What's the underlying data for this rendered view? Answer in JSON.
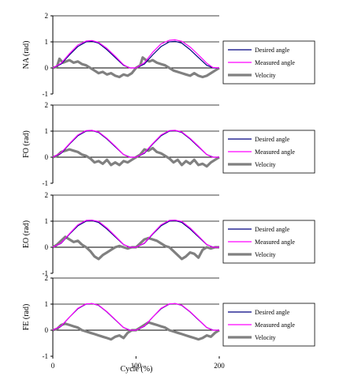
{
  "figure": {
    "xlabel": "Cycle (%)",
    "xticks": [
      "0",
      "100",
      "200"
    ]
  },
  "chart_data": [
    {
      "type": "line",
      "ylabel": "NA (rad)",
      "xlim": [
        0,
        200
      ],
      "ylim": [
        -1,
        2
      ],
      "yticks": [
        "2",
        "1",
        "0",
        "-1"
      ],
      "grid": true,
      "legend_position": "right",
      "series": [
        {
          "name": "Desired angle",
          "color": "#000080",
          "x": [
            0,
            10,
            20,
            30,
            40,
            47,
            55,
            65,
            75,
            85,
            93,
            100,
            110,
            120,
            130,
            140,
            147,
            155,
            165,
            175,
            185,
            193,
            200
          ],
          "y": [
            0,
            0.15,
            0.5,
            0.82,
            1.0,
            1.02,
            0.95,
            0.7,
            0.4,
            0.1,
            0.0,
            0.0,
            0.15,
            0.5,
            0.82,
            1.0,
            1.02,
            0.95,
            0.7,
            0.4,
            0.1,
            0.0,
            0.0
          ]
        },
        {
          "name": "Measured angle",
          "color": "#ff00ff",
          "x": [
            0,
            10,
            20,
            30,
            40,
            47,
            55,
            65,
            75,
            85,
            92,
            100,
            110,
            120,
            130,
            140,
            147,
            155,
            165,
            175,
            185,
            192,
            200
          ],
          "y": [
            0,
            0.18,
            0.55,
            0.88,
            1.03,
            1.05,
            0.98,
            0.75,
            0.45,
            0.12,
            0.0,
            0.0,
            0.2,
            0.6,
            0.92,
            1.06,
            1.08,
            1.02,
            0.8,
            0.5,
            0.18,
            0.02,
            0.0
          ]
        },
        {
          "name": "Velocity",
          "color": "#808080",
          "x": [
            0,
            5,
            8,
            12,
            16,
            20,
            25,
            30,
            35,
            40,
            45,
            50,
            55,
            60,
            65,
            70,
            75,
            80,
            85,
            90,
            95,
            100,
            105,
            108,
            112,
            116,
            120,
            125,
            130,
            135,
            140,
            145,
            150,
            155,
            160,
            165,
            170,
            175,
            180,
            185,
            190,
            195,
            200
          ],
          "y": [
            0,
            0.05,
            0.35,
            0.2,
            0.25,
            0.3,
            0.2,
            0.25,
            0.15,
            0.1,
            0.0,
            -0.1,
            -0.2,
            -0.15,
            -0.25,
            -0.2,
            -0.3,
            -0.35,
            -0.25,
            -0.3,
            -0.2,
            0.0,
            0.1,
            0.4,
            0.3,
            0.25,
            0.3,
            0.2,
            0.15,
            0.1,
            0.0,
            -0.1,
            -0.15,
            -0.2,
            -0.25,
            -0.3,
            -0.2,
            -0.3,
            -0.35,
            -0.3,
            -0.2,
            -0.1,
            0.0
          ]
        }
      ]
    },
    {
      "type": "line",
      "ylabel": "FO (rad)",
      "xlim": [
        0,
        200
      ],
      "ylim": [
        -1,
        2
      ],
      "yticks": [
        "2",
        "1",
        "0",
        "-1"
      ],
      "grid": true,
      "legend_position": "right",
      "series": [
        {
          "name": "Desired angle",
          "color": "#000080",
          "x": [
            0,
            10,
            20,
            30,
            40,
            47,
            55,
            65,
            75,
            85,
            93,
            100,
            110,
            120,
            130,
            140,
            147,
            155,
            165,
            175,
            185,
            193,
            200
          ],
          "y": [
            0,
            0.15,
            0.5,
            0.82,
            1.0,
            1.02,
            0.95,
            0.7,
            0.4,
            0.1,
            0.0,
            0.0,
            0.15,
            0.5,
            0.82,
            1.0,
            1.02,
            0.95,
            0.7,
            0.4,
            0.1,
            0.0,
            0.0
          ]
        },
        {
          "name": "Measured angle",
          "color": "#ff00ff",
          "x": [
            0,
            10,
            20,
            30,
            40,
            47,
            55,
            65,
            75,
            85,
            92,
            100,
            110,
            120,
            130,
            140,
            147,
            155,
            165,
            175,
            185,
            192,
            200
          ],
          "y": [
            0,
            0.17,
            0.52,
            0.85,
            1.02,
            1.03,
            0.97,
            0.72,
            0.42,
            0.1,
            0.0,
            0.0,
            0.17,
            0.52,
            0.85,
            1.02,
            1.03,
            0.97,
            0.72,
            0.42,
            0.1,
            0.0,
            0.0
          ]
        },
        {
          "name": "Velocity",
          "color": "#808080",
          "x": [
            0,
            5,
            10,
            15,
            20,
            25,
            30,
            35,
            40,
            45,
            50,
            55,
            60,
            65,
            70,
            75,
            80,
            85,
            90,
            95,
            100,
            105,
            110,
            115,
            120,
            125,
            130,
            135,
            140,
            145,
            150,
            155,
            160,
            165,
            170,
            175,
            180,
            185,
            190,
            195,
            200
          ],
          "y": [
            0,
            0.05,
            0.2,
            0.25,
            0.3,
            0.25,
            0.2,
            0.1,
            0.05,
            -0.05,
            -0.2,
            -0.15,
            -0.25,
            -0.1,
            -0.3,
            -0.2,
            -0.3,
            -0.15,
            -0.2,
            -0.1,
            0.0,
            0.1,
            0.3,
            0.25,
            0.35,
            0.2,
            0.15,
            0.05,
            -0.05,
            -0.2,
            -0.1,
            -0.3,
            -0.15,
            -0.25,
            -0.1,
            -0.3,
            -0.25,
            -0.35,
            -0.2,
            -0.1,
            0.0
          ]
        }
      ]
    },
    {
      "type": "line",
      "ylabel": "EO (rad)",
      "xlim": [
        0,
        200
      ],
      "ylim": [
        -1,
        2
      ],
      "yticks": [
        "2",
        "1",
        "0",
        "-1"
      ],
      "grid": true,
      "legend_position": "right",
      "series": [
        {
          "name": "Desired angle",
          "color": "#000080",
          "x": [
            0,
            10,
            20,
            30,
            40,
            47,
            55,
            65,
            75,
            85,
            93,
            100,
            110,
            120,
            130,
            140,
            147,
            155,
            165,
            175,
            185,
            193,
            200
          ],
          "y": [
            0,
            0.15,
            0.5,
            0.82,
            1.0,
            1.02,
            0.95,
            0.7,
            0.4,
            0.1,
            0.0,
            0.0,
            0.15,
            0.5,
            0.82,
            1.0,
            1.02,
            0.95,
            0.7,
            0.4,
            0.1,
            0.0,
            0.0
          ]
        },
        {
          "name": "Measured angle",
          "color": "#ff00ff",
          "x": [
            0,
            10,
            20,
            30,
            40,
            47,
            55,
            65,
            75,
            85,
            92,
            100,
            110,
            120,
            130,
            140,
            147,
            155,
            165,
            175,
            185,
            192,
            200
          ],
          "y": [
            0,
            0.16,
            0.52,
            0.86,
            1.03,
            1.04,
            0.99,
            0.74,
            0.43,
            0.11,
            0.0,
            0.0,
            0.16,
            0.52,
            0.86,
            1.03,
            1.04,
            0.99,
            0.74,
            0.43,
            0.11,
            0.0,
            0.0
          ]
        },
        {
          "name": "Velocity",
          "color": "#808080",
          "x": [
            0,
            5,
            10,
            15,
            20,
            25,
            30,
            35,
            40,
            45,
            50,
            55,
            60,
            65,
            70,
            75,
            80,
            85,
            90,
            95,
            100,
            105,
            110,
            115,
            120,
            125,
            130,
            135,
            140,
            145,
            150,
            155,
            160,
            165,
            170,
            175,
            180,
            185,
            190,
            195,
            200
          ],
          "y": [
            0,
            0.1,
            0.25,
            0.4,
            0.3,
            0.2,
            0.25,
            0.1,
            0.0,
            -0.15,
            -0.35,
            -0.45,
            -0.3,
            -0.2,
            -0.1,
            0.0,
            0.05,
            0.0,
            -0.05,
            0.0,
            0.0,
            0.15,
            0.3,
            0.35,
            0.3,
            0.25,
            0.15,
            0.05,
            0.0,
            -0.15,
            -0.3,
            -0.45,
            -0.35,
            -0.2,
            -0.25,
            -0.4,
            -0.1,
            0.0,
            -0.05,
            0.0,
            0.0
          ]
        }
      ]
    },
    {
      "type": "line",
      "ylabel": "FE (rad)",
      "xlim": [
        0,
        200
      ],
      "ylim": [
        -1,
        2
      ],
      "yticks": [
        "2",
        "1",
        "0",
        "-1"
      ],
      "grid": true,
      "legend_position": "right",
      "series": [
        {
          "name": "Desired angle",
          "color": "#000080",
          "x": [
            0,
            10,
            20,
            30,
            40,
            47,
            55,
            65,
            75,
            85,
            93,
            100,
            110,
            120,
            130,
            140,
            147,
            155,
            165,
            175,
            185,
            193,
            200
          ],
          "y": [
            0,
            0.15,
            0.5,
            0.82,
            1.0,
            1.02,
            0.95,
            0.7,
            0.4,
            0.1,
            0.0,
            0.0,
            0.15,
            0.5,
            0.82,
            1.0,
            1.02,
            0.95,
            0.7,
            0.4,
            0.1,
            0.0,
            0.0
          ]
        },
        {
          "name": "Measured angle",
          "color": "#ff00ff",
          "x": [
            0,
            10,
            20,
            30,
            40,
            47,
            55,
            65,
            75,
            85,
            92,
            100,
            110,
            120,
            130,
            140,
            147,
            155,
            165,
            175,
            185,
            192,
            200
          ],
          "y": [
            0,
            0.16,
            0.5,
            0.84,
            1.01,
            1.02,
            0.96,
            0.71,
            0.41,
            0.1,
            0.0,
            0.0,
            0.16,
            0.5,
            0.84,
            1.01,
            1.02,
            0.96,
            0.71,
            0.41,
            0.1,
            0.0,
            0.0
          ]
        },
        {
          "name": "Velocity",
          "color": "#808080",
          "x": [
            0,
            5,
            10,
            15,
            20,
            25,
            30,
            35,
            40,
            45,
            50,
            55,
            60,
            65,
            70,
            75,
            80,
            85,
            90,
            95,
            100,
            105,
            110,
            115,
            120,
            125,
            130,
            135,
            140,
            145,
            150,
            155,
            160,
            165,
            170,
            175,
            180,
            185,
            190,
            195,
            200
          ],
          "y": [
            0,
            0.05,
            0.2,
            0.25,
            0.2,
            0.15,
            0.1,
            0.0,
            -0.05,
            -0.1,
            -0.15,
            -0.2,
            -0.25,
            -0.3,
            -0.35,
            -0.25,
            -0.2,
            -0.3,
            -0.1,
            0.0,
            0.0,
            0.1,
            0.2,
            0.3,
            0.25,
            0.2,
            0.15,
            0.1,
            0.0,
            -0.05,
            -0.1,
            -0.15,
            -0.2,
            -0.25,
            -0.3,
            -0.35,
            -0.3,
            -0.2,
            -0.25,
            -0.1,
            0.0
          ]
        }
      ]
    }
  ]
}
